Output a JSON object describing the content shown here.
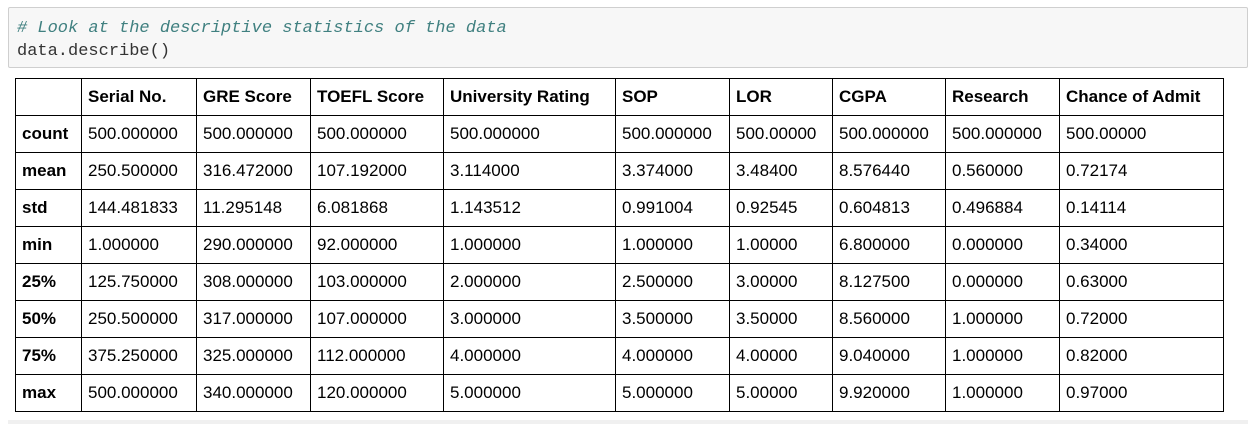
{
  "code": {
    "comment": "# Look at the descriptive statistics of the data",
    "line": "data.describe()"
  },
  "table": {
    "columns": [
      "Serial No.",
      "GRE Score",
      "TOEFL Score",
      "University Rating",
      "SOP",
      "LOR",
      "CGPA",
      "Research",
      "Chance of Admit"
    ],
    "rows": [
      {
        "label": "count",
        "cells": [
          "500.000000",
          "500.000000",
          "500.000000",
          "500.000000",
          "500.000000",
          "500.00000",
          "500.000000",
          "500.000000",
          "500.00000"
        ]
      },
      {
        "label": "mean",
        "cells": [
          "250.500000",
          "316.472000",
          "107.192000",
          "3.114000",
          "3.374000",
          "3.48400",
          "8.576440",
          "0.560000",
          "0.72174"
        ]
      },
      {
        "label": "std",
        "cells": [
          "144.481833",
          "11.295148",
          "6.081868",
          "1.143512",
          "0.991004",
          "0.92545",
          "0.604813",
          "0.496884",
          "0.14114"
        ]
      },
      {
        "label": "min",
        "cells": [
          "1.000000",
          "290.000000",
          "92.000000",
          "1.000000",
          "1.000000",
          "1.00000",
          "6.800000",
          "0.000000",
          "0.34000"
        ]
      },
      {
        "label": "25%",
        "cells": [
          "125.750000",
          "308.000000",
          "103.000000",
          "2.000000",
          "2.500000",
          "3.00000",
          "8.127500",
          "0.000000",
          "0.63000"
        ]
      },
      {
        "label": "50%",
        "cells": [
          "250.500000",
          "317.000000",
          "107.000000",
          "3.000000",
          "3.500000",
          "3.50000",
          "8.560000",
          "1.000000",
          "0.72000"
        ]
      },
      {
        "label": "75%",
        "cells": [
          "375.250000",
          "325.000000",
          "112.000000",
          "4.000000",
          "4.000000",
          "4.00000",
          "9.040000",
          "1.000000",
          "0.82000"
        ]
      },
      {
        "label": "max",
        "cells": [
          "500.000000",
          "340.000000",
          "120.000000",
          "5.000000",
          "5.000000",
          "5.00000",
          "9.920000",
          "1.000000",
          "0.97000"
        ]
      }
    ]
  }
}
